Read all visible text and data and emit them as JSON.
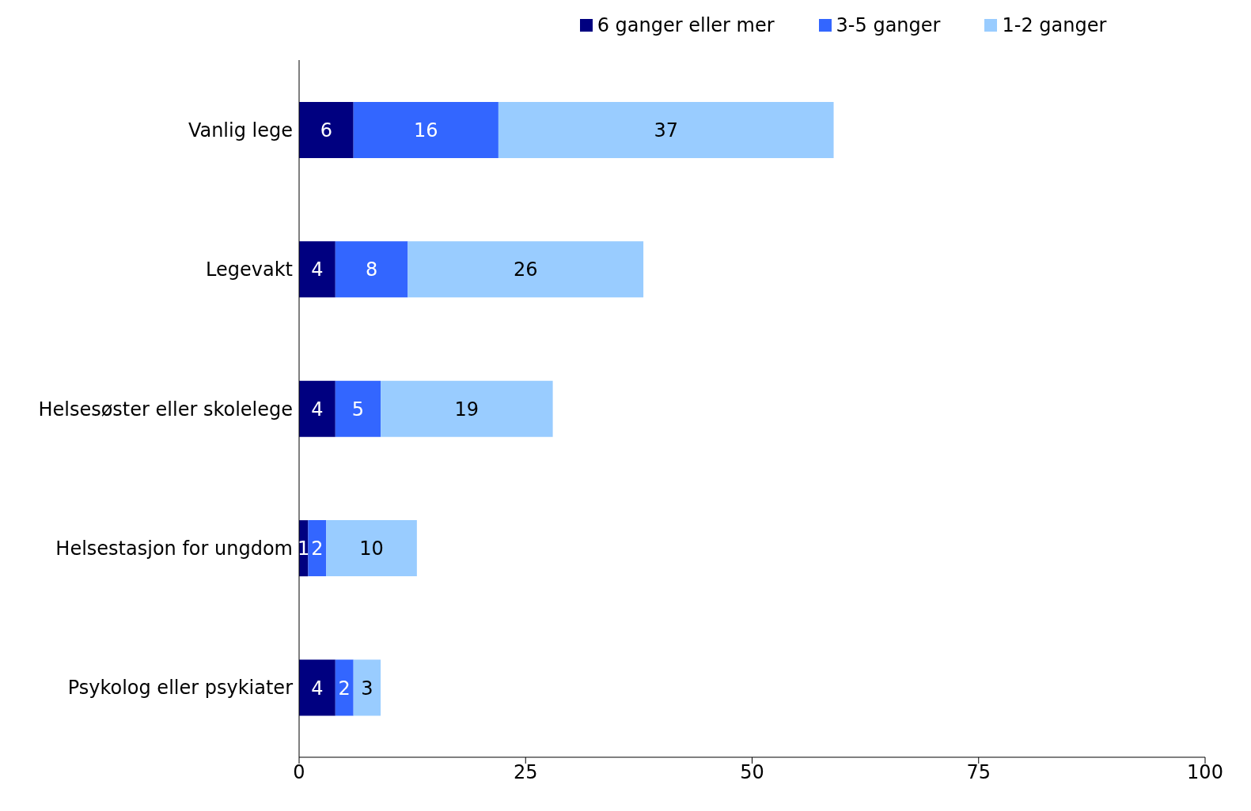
{
  "chart_data": {
    "type": "bar",
    "orientation": "horizontal",
    "stacked": true,
    "categories": [
      "Vanlig lege",
      "Legevakt",
      "Helsesøster eller skolelege",
      "Helsestasjon for ungdom",
      "Psykolog eller psykiater"
    ],
    "series": [
      {
        "name": "6 ganger eller mer",
        "color": "#000080",
        "values": [
          6,
          4,
          4,
          1,
          4
        ]
      },
      {
        "name": "3-5 ganger",
        "color": "#3366ff",
        "values": [
          16,
          8,
          5,
          2,
          2
        ]
      },
      {
        "name": "1-2 ganger",
        "color": "#99ccff",
        "values": [
          37,
          26,
          19,
          10,
          3
        ]
      }
    ],
    "xlim": [
      0,
      100
    ],
    "xticks": [
      0,
      25,
      50,
      75,
      100
    ],
    "grid": false,
    "legend": "top",
    "data_labels": true
  }
}
